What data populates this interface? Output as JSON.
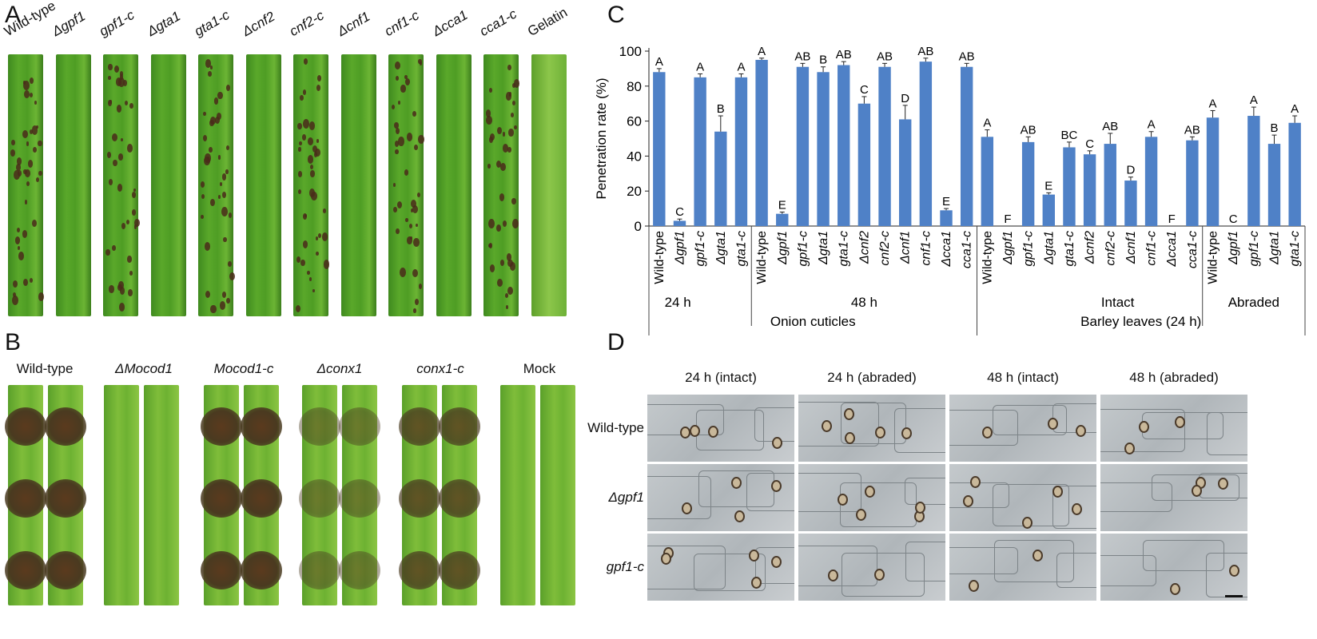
{
  "panels": {
    "A": {
      "letter": "A",
      "strains": [
        "Wild-type",
        "Δgpf1",
        "gpf1-c",
        "Δgta1",
        "gta1-c",
        "Δcnf2",
        "cnf2-c",
        "Δcnf1",
        "cnf1-c",
        "Δcca1",
        "cca1-c",
        "Gelatin"
      ]
    },
    "B": {
      "letter": "B",
      "strains": [
        "Wild-type",
        "ΔMocod1",
        "Mocod1-c",
        "Δconx1",
        "conx1-c",
        "Mock"
      ]
    },
    "D": {
      "letter": "D",
      "columns": [
        "24 h (intact)",
        "24 h (abraded)",
        "48 h (intact)",
        "48 h (abraded)"
      ],
      "rows": [
        "Wild-type",
        "Δgpf1",
        "gpf1-c"
      ]
    }
  },
  "chart_data": {
    "type": "bar",
    "panel_letter": "C",
    "ylabel": "Penetration rate (%)",
    "ylim": [
      0,
      100
    ],
    "yticks": [
      0,
      20,
      40,
      60,
      80,
      100
    ],
    "categories": [
      "Wild-type",
      "Δgpf1",
      "gpf1-c",
      "Δgta1",
      "gta1-c",
      "Wild-type",
      "Δgpf1",
      "gpf1-c",
      "Δgta1",
      "gta1-c",
      "Δcnf2",
      "cnf2-c",
      "Δcnf1",
      "cnf1-c",
      "Δcca1",
      "cca1-c",
      "Wild-type",
      "Δgpf1",
      "gpf1-c",
      "Δgta1",
      "gta1-c",
      "Δcnf2",
      "cnf2-c",
      "Δcnf1",
      "cnf1-c",
      "Δcca1",
      "cca1-c",
      "Wild-type",
      "Δgpf1",
      "gpf1-c",
      "Δgta1",
      "gta1-c"
    ],
    "values": [
      88,
      3,
      85,
      54,
      85,
      95,
      7,
      91,
      88,
      92,
      70,
      91,
      61,
      94,
      9,
      91,
      51,
      0,
      48,
      18,
      45,
      41,
      47,
      26,
      51,
      0,
      49,
      62,
      0,
      63,
      47,
      59
    ],
    "errors": [
      2,
      1,
      2,
      9,
      2,
      1,
      1,
      2,
      3,
      2,
      4,
      2,
      8,
      2,
      1,
      2,
      4,
      0,
      3,
      1,
      3,
      2,
      6,
      2,
      3,
      0,
      2,
      4,
      0,
      5,
      5,
      4
    ],
    "letters": [
      "A",
      "C",
      "A",
      "B",
      "A",
      "A",
      "E",
      "AB",
      "B",
      "AB",
      "C",
      "AB",
      "D",
      "AB",
      "E",
      "AB",
      "A",
      "F",
      "AB",
      "E",
      "BC",
      "C",
      "AB",
      "D",
      "A",
      "F",
      "AB",
      "A",
      "C",
      "A",
      "B",
      "A"
    ],
    "groups": [
      {
        "label": "24 h",
        "start": 0,
        "end": 4
      },
      {
        "label": "48 h",
        "start": 5,
        "end": 15
      },
      {
        "label": "Intact",
        "start": 16,
        "end": 26
      },
      {
        "label": "Abraded",
        "start": 27,
        "end": 31
      }
    ],
    "supergroups": [
      {
        "label": "Onion cuticles",
        "start": 0,
        "end": 15
      },
      {
        "label": "Barley leaves (24 h)",
        "start": 16,
        "end": 31
      }
    ],
    "bar_color": "#4f81c7"
  }
}
